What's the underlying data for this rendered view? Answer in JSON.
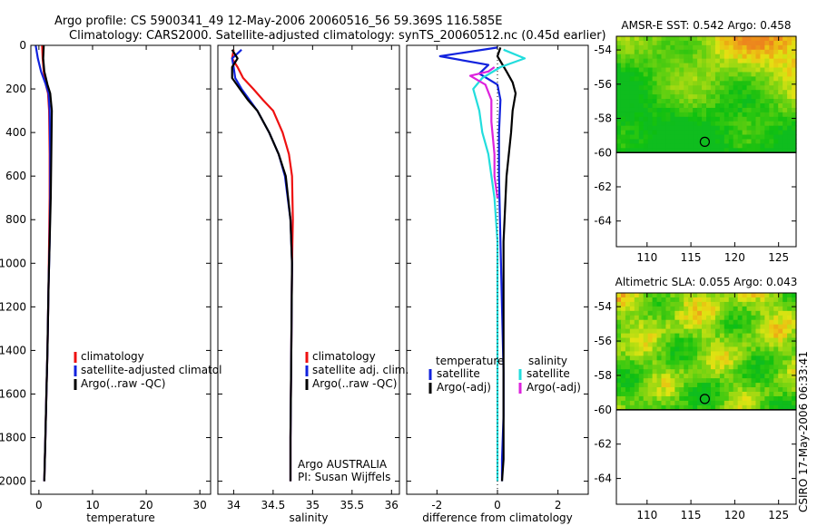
{
  "figure": {
    "title_line1": "Argo profile: CS 5900341_49 12-May-2006 20060516_56 59.369S 116.585E",
    "title_line2": "Climatology: CARS2000. Satellite-adjusted climatology: synTS_20060512.nc (0.45d earlier)",
    "credit": "CSIRO 17-May-2006 06:33:41"
  },
  "colors": {
    "climatology": "#ee1111",
    "satellite": "#1122dd",
    "argo": "#000000",
    "sat_salinity": "#22dddd",
    "argo_adj_salinity": "#dd22dd",
    "map_green": "#22aa33",
    "map_orange": "#ff8800"
  },
  "chart_data": [
    {
      "type": "line",
      "id": "temperature",
      "xlabel": "temperature",
      "ylabel": "",
      "xlim": [
        -1.5,
        32
      ],
      "ylim": [
        2060,
        0
      ],
      "xticks": [
        0,
        10,
        20,
        30
      ],
      "xtick_labels": [
        "0",
        "10",
        "20",
        "30"
      ],
      "yticks": [
        0,
        200,
        400,
        600,
        800,
        1000,
        1200,
        1400,
        1600,
        1800,
        2000
      ],
      "ytick_labels": [
        "0",
        "200",
        "400",
        "600",
        "800",
        "1000",
        "1200",
        "1400",
        "1600",
        "1800",
        "2000"
      ],
      "legend": {
        "position": "lower-right",
        "entries": [
          "climatology",
          "satellite-adjusted climatology",
          "Argo(..raw -QC)"
        ]
      },
      "series": [
        {
          "name": "climatology",
          "color_key": "climatology",
          "x": [
            0.6,
            0.7,
            0.9,
            1.3,
            1.7,
            1.9,
            2.0,
            2.0,
            1.9,
            1.8,
            1.6,
            1.4,
            1.2,
            1.0
          ],
          "y": [
            0,
            60,
            120,
            180,
            220,
            300,
            500,
            700,
            900,
            1100,
            1400,
            1600,
            1800,
            2000
          ]
        },
        {
          "name": "satellite-adjusted climatology",
          "color_key": "satellite",
          "x": [
            -0.6,
            -0.2,
            0.4,
            1.3,
            1.8,
            2.0,
            2.1,
            2.1,
            2.0,
            1.8,
            1.6,
            1.4,
            1.2,
            1.0
          ],
          "y": [
            0,
            60,
            120,
            180,
            220,
            300,
            500,
            700,
            900,
            1100,
            1400,
            1600,
            1800,
            2000
          ]
        },
        {
          "name": "Argo(..raw -QC)",
          "color_key": "argo",
          "x": [
            0.9,
            0.8,
            1.0,
            1.6,
            2.1,
            2.4,
            2.3,
            2.2,
            2.0,
            1.8,
            1.6,
            1.4,
            1.2,
            1.0
          ],
          "y": [
            0,
            60,
            120,
            180,
            220,
            300,
            500,
            700,
            900,
            1100,
            1400,
            1600,
            1800,
            2000
          ]
        }
      ]
    },
    {
      "type": "line",
      "id": "salinity",
      "xlabel": "salinity",
      "ylabel": "",
      "xlim": [
        33.8,
        36.1
      ],
      "ylim": [
        2060,
        0
      ],
      "xticks": [
        34,
        34.5,
        35,
        35.5,
        36
      ],
      "xtick_labels": [
        "34",
        "34.5",
        "35",
        "35.5",
        "36"
      ],
      "yticks": [
        0,
        200,
        400,
        600,
        800,
        1000,
        1200,
        1400,
        1600,
        1800,
        2000
      ],
      "legend": {
        "position": "lower-right",
        "entries": [
          "climatology",
          "satellite adj. clim.",
          "Argo(..raw -QC)"
        ]
      },
      "annotation": [
        "Argo AUSTRALIA",
        "PI: Susan Wijffels"
      ],
      "series": [
        {
          "name": "climatology",
          "color_key": "climatology",
          "x": [
            34.0,
            33.98,
            34.05,
            34.12,
            34.25,
            34.37,
            34.5,
            34.62,
            34.7,
            34.74,
            34.75,
            34.74,
            34.73,
            34.72,
            34.72
          ],
          "y": [
            20,
            60,
            100,
            150,
            200,
            250,
            300,
            400,
            500,
            600,
            800,
            1000,
            1400,
            1800,
            2000
          ]
        },
        {
          "name": "satellite adj. clim.",
          "color_key": "satellite",
          "x": [
            34.1,
            33.98,
            34.0,
            34.02,
            34.1,
            34.2,
            34.3,
            34.45,
            34.57,
            34.65,
            34.72,
            34.74,
            34.73,
            34.72,
            34.72
          ],
          "y": [
            20,
            60,
            100,
            150,
            200,
            250,
            300,
            400,
            500,
            600,
            800,
            1000,
            1400,
            1800,
            2000
          ]
        },
        {
          "name": "Argo(..raw -QC)",
          "color_key": "argo",
          "x": [
            33.98,
            34.05,
            33.98,
            33.98,
            34.08,
            34.18,
            34.3,
            34.45,
            34.57,
            34.66,
            34.72,
            34.74,
            34.73,
            34.72,
            34.72
          ],
          "y": [
            20,
            60,
            100,
            150,
            200,
            250,
            300,
            400,
            500,
            600,
            800,
            1000,
            1400,
            1800,
            2000
          ]
        }
      ]
    },
    {
      "type": "line",
      "id": "difference",
      "xlabel": "difference from climatology",
      "ylabel": "",
      "xlim": [
        -3,
        3
      ],
      "ylim": [
        2060,
        0
      ],
      "xticks": [
        -2,
        0,
        2
      ],
      "xtick_labels": [
        "-2",
        "0",
        "2"
      ],
      "yticks": [
        0,
        200,
        400,
        600,
        800,
        1000,
        1200,
        1400,
        1600,
        1800,
        2000
      ],
      "legend": {
        "position": "lower",
        "temperature_header": "temperature",
        "salinity_header": "salinity",
        "entries": [
          "satellite",
          "Argo(-adj)",
          "satellite",
          "Argo(-adj)"
        ]
      },
      "series": [
        {
          "name": "satellite (temperature)",
          "color_key": "satellite",
          "x": [
            0.0,
            -1.9,
            -0.3,
            -0.6,
            0.0,
            0.1,
            0.05,
            0.05,
            0.1,
            0.15,
            0.2,
            0.2,
            0.15,
            0.15
          ],
          "y": [
            10,
            50,
            90,
            130,
            180,
            250,
            400,
            600,
            900,
            1200,
            1500,
            1700,
            1900,
            2000
          ]
        },
        {
          "name": "Argo(-adj) (temperature)",
          "color_key": "argo",
          "x": [
            0.1,
            0.0,
            0.3,
            0.5,
            0.6,
            0.5,
            0.45,
            0.3,
            0.2,
            0.2,
            0.2,
            0.2,
            0.2,
            0.15
          ],
          "y": [
            10,
            50,
            120,
            170,
            220,
            300,
            400,
            600,
            900,
            1200,
            1500,
            1700,
            1900,
            2000
          ]
        },
        {
          "name": "satellite (salinity)",
          "color_key": "sat_salinity",
          "x": [
            0.2,
            0.9,
            0.1,
            -0.5,
            -0.8,
            -0.6,
            -0.5,
            -0.3,
            -0.1,
            0.0,
            0.0,
            0.0,
            0.0,
            0.0
          ],
          "y": [
            20,
            60,
            100,
            150,
            200,
            300,
            400,
            500,
            700,
            900,
            1200,
            1500,
            1800,
            2000
          ]
        },
        {
          "name": "Argo(-adj) (salinity)",
          "color_key": "argo_adj_salinity",
          "x": [
            -0.1,
            -0.3,
            -0.9,
            -0.4,
            -0.2,
            -0.2,
            -0.1,
            -0.1,
            0.0
          ],
          "y": [
            100,
            120,
            140,
            180,
            250,
            350,
            500,
            600,
            700
          ]
        }
      ]
    },
    {
      "type": "heatmap",
      "id": "sst-map",
      "title": "AMSR-E SST: 0.542 Argo: 0.458",
      "xlim": [
        106.5,
        127
      ],
      "ylim": [
        -65.5,
        -53.2
      ],
      "xticks": [
        110,
        115,
        120,
        125
      ],
      "xtick_labels": [
        "110",
        "115",
        "120",
        "125"
      ],
      "yticks": [
        -54,
        -56,
        -58,
        -60,
        -62,
        -64
      ],
      "ytick_labels": [
        "-54",
        "-56",
        "-58",
        "-60",
        "-62",
        "-64"
      ],
      "data_lat_min": -60.0,
      "seed": 7,
      "marker": {
        "lon": 116.585,
        "lat": -59.369
      }
    },
    {
      "type": "heatmap",
      "id": "sla-map",
      "title": "Altimetric SLA: 0.055 Argo: 0.043",
      "xlim": [
        106.5,
        127
      ],
      "ylim": [
        -65.5,
        -53.2
      ],
      "xticks": [
        110,
        115,
        120,
        125
      ],
      "xtick_labels": [
        "110",
        "115",
        "120",
        "125"
      ],
      "yticks": [
        -54,
        -56,
        -58,
        -60,
        -62,
        -64
      ],
      "ytick_labels": [
        "-54",
        "-56",
        "-58",
        "-60",
        "-62",
        "-64"
      ],
      "data_lat_min": -60.0,
      "seed": 19,
      "marker": {
        "lon": 116.585,
        "lat": -59.369
      }
    }
  ]
}
